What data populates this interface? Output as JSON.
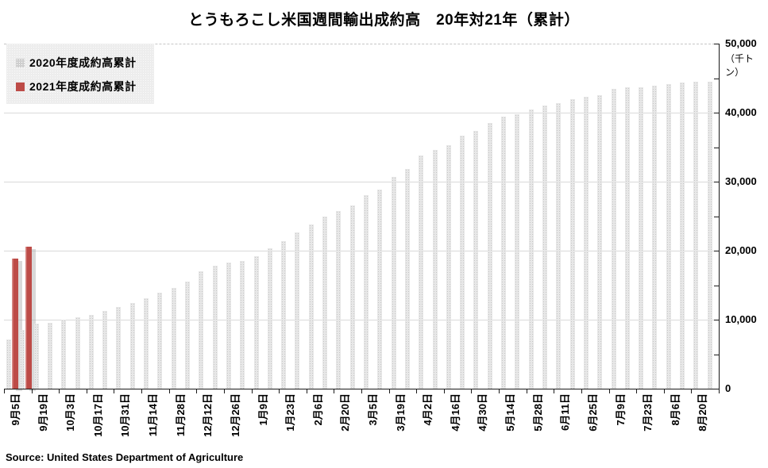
{
  "title": "とうもろこし米国週間輸出成約高　20年対21年（累計）",
  "source": "Source: United States Department of Agriculture",
  "legend": {
    "items": [
      {
        "label": "2020年度成約高累計",
        "color": "#d9d9d9"
      },
      {
        "label": "2021年度成約高累計",
        "color": "#bd4b47"
      }
    ]
  },
  "y_axis": {
    "unit_label": "（千トン）",
    "tick_values": [
      0,
      10000,
      20000,
      30000,
      40000,
      50000
    ],
    "tick_labels": [
      "0",
      "10,000",
      "20,000",
      "30,000",
      "40,000",
      "50,000"
    ],
    "minor_tick_step": 5000
  },
  "chart_data": {
    "type": "bar",
    "title": "とうもろこし米国週間輸出成約高　20年対21年（累計）",
    "xlabel": "",
    "ylabel": "（千トン）",
    "ylim": [
      0,
      50000
    ],
    "grid": true,
    "legend_position": "top-left",
    "weeks": 52,
    "x_tick_labels": [
      "9月5日",
      "9月19日",
      "10月3日",
      "10月17日",
      "10月31日",
      "11月14日",
      "11月28日",
      "12月12日",
      "12月26日",
      "1月9日",
      "1月23日",
      "2月6日",
      "2月20日",
      "3月5日",
      "3月19日",
      "4月2日",
      "4月16日",
      "4月30日",
      "5月14日",
      "5月28日",
      "6月11日",
      "6月25日",
      "7月9日",
      "7月23日",
      "8月6日",
      "8月20日"
    ],
    "x_tick_label_every_n_bars": 2,
    "series": [
      {
        "name": "2020年度成約高累計",
        "color": "#d9d9d9",
        "values": [
          7100,
          8500,
          9400,
          9550,
          10000,
          10350,
          10700,
          11250,
          11850,
          12400,
          13100,
          13900,
          14600,
          15500,
          17000,
          17800,
          18300,
          18500,
          19200,
          20350,
          21400,
          22650,
          23800,
          24950,
          25750,
          26550,
          28050,
          28850,
          30700,
          31850,
          33800,
          34600,
          35300,
          36650,
          37350,
          38500,
          39400,
          39750,
          40450,
          41050,
          41400,
          41900,
          42300,
          42550,
          43450,
          43700,
          43700,
          43900,
          44150,
          44350,
          44500,
          44500
        ]
      },
      {
        "name": "2021年度成約高累計",
        "color": "#bd4b47",
        "values": [
          18850,
          20550,
          0,
          0,
          0,
          0,
          0,
          0,
          0,
          0,
          0,
          0,
          0,
          0,
          0,
          0,
          0,
          0,
          0,
          0,
          0,
          0,
          0,
          0,
          0,
          0,
          0,
          0,
          0,
          0,
          0,
          0,
          0,
          0,
          0,
          0,
          0,
          0,
          0,
          0,
          0,
          0,
          0,
          0,
          0,
          0,
          0,
          0,
          0,
          0,
          0,
          0
        ]
      }
    ]
  }
}
